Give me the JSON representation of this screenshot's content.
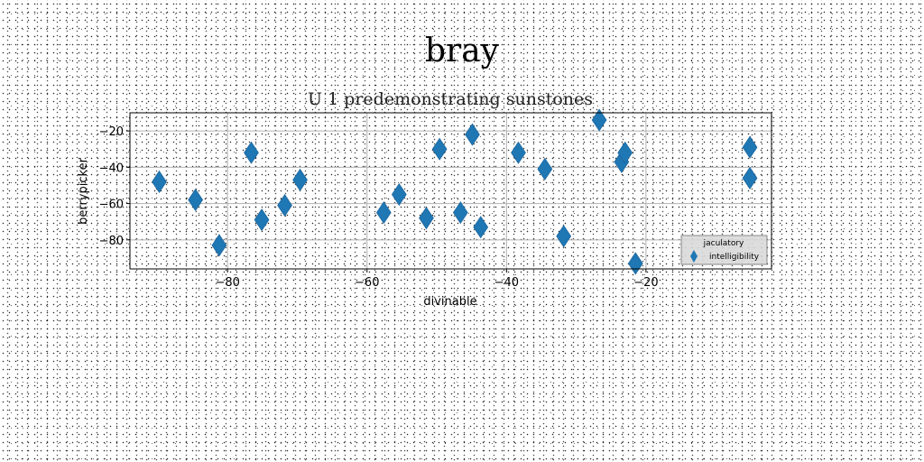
{
  "suptitle": "bray",
  "chart_data": {
    "type": "scatter",
    "title": "U 1 predemonstrating sunstones",
    "xlabel": "divinable",
    "ylabel": "berrypicker",
    "xlim": [
      -94,
      -2
    ],
    "ylim": [
      -96,
      -10
    ],
    "xticks": [
      -80,
      -60,
      -40,
      -20
    ],
    "yticks": [
      -20,
      -40,
      -60,
      -80
    ],
    "grid": true,
    "legend": {
      "title": "jaculatory",
      "placement": "lower-right"
    },
    "marker": "diamond",
    "color": "#1f77b4",
    "series": [
      {
        "name": "intelligibility",
        "points": [
          [
            -89.8,
            -48
          ],
          [
            -84.6,
            -58
          ],
          [
            -81.2,
            -83
          ],
          [
            -76.6,
            -32
          ],
          [
            -75.1,
            -69
          ],
          [
            -71.8,
            -61
          ],
          [
            -69.6,
            -47
          ],
          [
            -57.6,
            -65
          ],
          [
            -55.4,
            -55
          ],
          [
            -51.5,
            -68
          ],
          [
            -49.6,
            -30
          ],
          [
            -46.6,
            -65
          ],
          [
            -44.9,
            -22
          ],
          [
            -43.7,
            -73
          ],
          [
            -38.3,
            -32
          ],
          [
            -34.5,
            -41
          ],
          [
            -31.8,
            -78
          ],
          [
            -26.7,
            -14
          ],
          [
            -23.5,
            -37
          ],
          [
            -23.0,
            -32
          ],
          [
            -21.5,
            -93
          ],
          [
            -5.1,
            -29
          ],
          [
            -5.1,
            -46
          ]
        ]
      }
    ]
  }
}
